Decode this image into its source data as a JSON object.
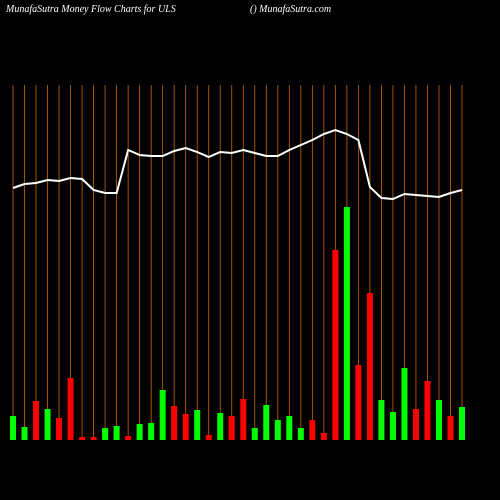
{
  "chart_data": {
    "type": "bar",
    "title": "MunafaSutra  Money Flow  Charts for ULS",
    "subtitle": "() MunafaSutra.com",
    "categories": [
      null,
      null,
      null,
      null,
      null,
      null,
      null,
      null,
      null,
      null,
      null,
      null,
      null,
      null,
      null,
      null,
      null,
      null,
      null,
      null,
      null,
      null,
      null,
      null,
      null,
      null,
      null,
      null,
      null,
      null,
      null,
      null,
      null,
      null,
      null,
      null,
      null,
      null,
      null,
      null
    ],
    "values": [
      24,
      13,
      39,
      31,
      22,
      62,
      3,
      3,
      12,
      14,
      4,
      16,
      17,
      50,
      34,
      26,
      30,
      5,
      27,
      24,
      41,
      12,
      35,
      20,
      24,
      12,
      20,
      7,
      190,
      233,
      75,
      147,
      40,
      28,
      72,
      31,
      59,
      40,
      24,
      33
    ],
    "colors": [
      "#00ff00",
      "#00ff00",
      "#ff0000",
      "#00ff00",
      "#ff0000",
      "#ff0000",
      "#ff0000",
      "#ff0000",
      "#00ff00",
      "#00ff00",
      "#ff0000",
      "#00ff00",
      "#00ff00",
      "#00ff00",
      "#ff0000",
      "#ff0000",
      "#00ff00",
      "#ff0000",
      "#00ff00",
      "#ff0000",
      "#ff0000",
      "#00ff00",
      "#00ff00",
      "#00ff00",
      "#00ff00",
      "#00ff00",
      "#ff0000",
      "#ff0000",
      "#ff0000",
      "#00ff00",
      "#ff0000",
      "#ff0000",
      "#00ff00",
      "#00ff00",
      "#00ff00",
      "#ff0000",
      "#ff0000",
      "#00ff00",
      "#ff0000",
      "#00ff00"
    ],
    "line": {
      "color": "#ffffff",
      "values": [
        252,
        256,
        257,
        260,
        259,
        262,
        261,
        250,
        247,
        247,
        290,
        285,
        284,
        284,
        289,
        292,
        288,
        283,
        288,
        287,
        290,
        287,
        284,
        284,
        290,
        295,
        300,
        306,
        310,
        306,
        300,
        253,
        242,
        241,
        246,
        245,
        244,
        243,
        247,
        250
      ]
    },
    "ylim": [
      0,
      360
    ],
    "grid_color": "#cc6600"
  }
}
